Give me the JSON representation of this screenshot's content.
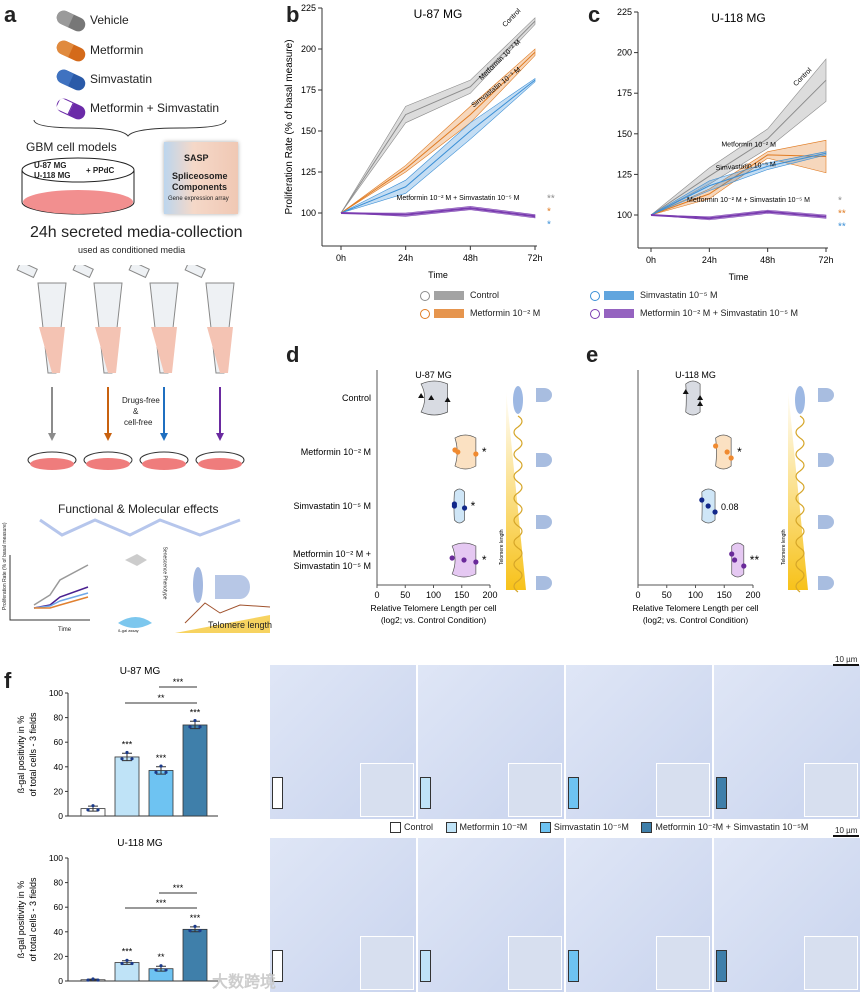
{
  "panels": {
    "a": "a",
    "b": "b",
    "c": "c",
    "d": "d",
    "e": "e",
    "f": "f"
  },
  "colors": {
    "control": "#8c8c8c",
    "metformin": "#e07b22",
    "simvastatin": "#3a8fd6",
    "combo": "#7a3cb0",
    "bar_control": "#ffffff",
    "bar_met": "#bfe3f7",
    "bar_sim": "#6ec3f2",
    "bar_combo": "#3f7faa"
  },
  "schematic": {
    "drugs": [
      "Vehicle",
      "Metformin",
      "Simvastatin",
      "Metformin + Simvastatin"
    ],
    "gbm_title": "GBM cell models",
    "dish_lines": [
      "U-87 MG",
      "U-118 MG"
    ],
    "dish_plus": "+ PPdC",
    "array_labels": [
      "SASP",
      "Spliceosome",
      "Components",
      "Gene expression array"
    ],
    "collection_title": "24h secreted media-collection",
    "collection_sub": "used as conditioned media",
    "arrow_note": [
      "Drugs-free",
      "&",
      "cell-free"
    ],
    "effects_title": "Functional & Molecular effects",
    "mini_chart_ylabel": "Proliferation Rate (% of basal measure)",
    "mini_chart_xlabel": "Time",
    "senescence_label": "Senescence Phenotype",
    "bgal_label": "ß-gal assay",
    "telomere_label": "Telomere length"
  },
  "chart_data": [
    {
      "id": "b",
      "type": "line",
      "title": "U-87 MG",
      "xlabel": "Time",
      "ylabel": "Proliferation Rate (% of basal measure)",
      "categories": [
        "0h",
        "24h",
        "48h",
        "72h"
      ],
      "ylim": [
        80,
        225
      ],
      "yticks": [
        100,
        125,
        150,
        175,
        200,
        225
      ],
      "series": [
        {
          "name": "Control",
          "key": "control",
          "values": [
            100,
            160,
            177,
            217
          ],
          "err": [
            0,
            5,
            4,
            2
          ]
        },
        {
          "name": "Metformin 10⁻² M",
          "key": "metformin",
          "values": [
            100,
            127,
            160,
            198
          ],
          "err": [
            0,
            2,
            5,
            2
          ]
        },
        {
          "name": "Simvastatin 10⁻⁵ M",
          "key": "simvastatin",
          "values": [
            100,
            116,
            150,
            181
          ],
          "err": [
            0,
            4,
            5,
            1
          ]
        },
        {
          "name": "Metformin 10⁻² M + Simvastatin 10⁻⁵ M",
          "key": "combo",
          "values": [
            100,
            99,
            103,
            98
          ],
          "err": [
            0,
            1,
            1,
            1
          ]
        }
      ],
      "significance": [
        {
          "text": "**",
          "key": "control"
        },
        {
          "text": "*",
          "key": "metformin"
        },
        {
          "text": "*",
          "key": "simvastatin"
        }
      ]
    },
    {
      "id": "c",
      "type": "line",
      "title": "U-118 MG",
      "xlabel": "Time",
      "ylabel": "",
      "categories": [
        "0h",
        "24h",
        "48h",
        "72h"
      ],
      "ylim": [
        80,
        225
      ],
      "yticks": [
        100,
        125,
        150,
        175,
        200,
        225
      ],
      "series": [
        {
          "name": "Control",
          "key": "control",
          "values": [
            100,
            124,
            147,
            183
          ],
          "err": [
            0,
            5,
            6,
            13
          ]
        },
        {
          "name": "Metformin 10⁻² M",
          "key": "metformin",
          "values": [
            100,
            113,
            137,
            136
          ],
          "err": [
            0,
            3,
            2,
            10
          ]
        },
        {
          "name": "Simvastatin 10⁻⁵ M",
          "key": "simvastatin",
          "values": [
            100,
            118,
            130,
            138
          ],
          "err": [
            0,
            3,
            2,
            1
          ]
        },
        {
          "name": "Metformin 10⁻² M + Simvastatin 10⁻⁵ M",
          "key": "combo",
          "values": [
            100,
            98,
            102,
            99
          ],
          "err": [
            0,
            1,
            1,
            1
          ]
        }
      ],
      "significance": [
        {
          "text": "*",
          "key": "control"
        },
        {
          "text": "**",
          "key": "metformin"
        },
        {
          "text": "**",
          "key": "simvastatin"
        }
      ]
    },
    {
      "id": "d",
      "type": "scatter",
      "title": "U-87 MG",
      "xlabel": "Relative Telomere Length per cell",
      "xlabel2": "(log2; vs. Control Condition)",
      "xlim": [
        0,
        200
      ],
      "xticks": [
        0,
        50,
        100,
        150,
        200
      ],
      "groups": [
        {
          "name": "Control",
          "key": "control",
          "points": [
            78,
            96,
            125
          ],
          "sig": ""
        },
        {
          "name": "Metformin 10⁻² M",
          "key": "metformin",
          "points": [
            138,
            143,
            175
          ],
          "sig": "*"
        },
        {
          "name": "Simvastatin 10⁻⁵ M",
          "key": "simvastatin",
          "points": [
            137,
            137,
            155
          ],
          "sig": "*"
        },
        {
          "name": "Metformin 10⁻² M + Simvastatin 10⁻⁵ M",
          "key": "combo",
          "points": [
            133,
            154,
            175
          ],
          "sig": "*"
        }
      ],
      "side_label": "Telomere length"
    },
    {
      "id": "e",
      "type": "scatter",
      "title": "U-118 MG",
      "xlabel": "Relative Telomere Length per cell",
      "xlabel2": "(log2; vs. Control Condition)",
      "xlim": [
        0,
        200
      ],
      "xticks": [
        0,
        50,
        100,
        150,
        200
      ],
      "groups": [
        {
          "name": "Control",
          "key": "control",
          "points": [
            83,
            108,
            108
          ],
          "sig": ""
        },
        {
          "name": "Metformin 10⁻² M",
          "key": "metformin",
          "points": [
            135,
            155,
            162
          ],
          "sig": "*"
        },
        {
          "name": "Simvastatin 10⁻⁵ M",
          "key": "simvastatin",
          "points": [
            111,
            122,
            134
          ],
          "sig": "0.08"
        },
        {
          "name": "Metformin 10⁻² M + Simvastatin 10⁻⁵ M",
          "key": "combo",
          "points": [
            163,
            168,
            184
          ],
          "sig": "**"
        }
      ],
      "side_label": "Telomere length"
    },
    {
      "id": "f1",
      "type": "bar",
      "title": "U-87 MG",
      "ylabel": "ß-gal positivity in % of total cells - 3 fields",
      "categories": [
        "Control",
        "Metformin 10⁻²M",
        "Simvastatin 10⁻⁵M",
        "Metformin 10⁻²M + Simvastatin 10⁻⁵M"
      ],
      "values": [
        6,
        48,
        37,
        74
      ],
      "err": [
        2,
        3,
        3,
        3
      ],
      "ylim": [
        0,
        100
      ],
      "yticks": [
        0,
        20,
        40,
        60,
        80,
        100
      ],
      "sig": [
        "",
        "***",
        "***",
        "***"
      ],
      "brackets": [
        {
          "from": 2,
          "to": 3,
          "text": "***"
        },
        {
          "from": 1,
          "to": 3,
          "text": "**"
        }
      ]
    },
    {
      "id": "f2",
      "type": "bar",
      "title": "U-118 MG",
      "ylabel": "ß-gal positivity in % of total cells - 3 fields",
      "categories": [
        "Control",
        "Metformin 10⁻²M",
        "Simvastatin 10⁻⁵M",
        "Metformin 10⁻²M + Simvastatin 10⁻⁵M"
      ],
      "values": [
        1,
        15,
        10,
        42
      ],
      "err": [
        0.5,
        1.5,
        2,
        2
      ],
      "ylim": [
        0,
        100
      ],
      "yticks": [
        0,
        20,
        40,
        60,
        80,
        100
      ],
      "sig": [
        "",
        "***",
        "**",
        "***"
      ],
      "brackets": [
        {
          "from": 2,
          "to": 3,
          "text": "***"
        },
        {
          "from": 1,
          "to": 3,
          "text": "***"
        }
      ]
    }
  ],
  "legend_bc": [
    {
      "label": "Control",
      "key": "control"
    },
    {
      "label": "Simvastatin 10⁻⁵ M",
      "key": "simvastatin"
    },
    {
      "label": "Metformin 10⁻² M",
      "key": "metformin"
    },
    {
      "label": "Metformin 10⁻² M + Simvastatin 10⁻⁵ M",
      "key": "combo"
    }
  ],
  "micrographs": {
    "scale_bar": "10 µm",
    "legend": [
      "Control",
      "Metformin 10⁻²M",
      "Simvastatin 10⁻⁵M",
      "Metformin 10⁻²M + Simvastatin 10⁻⁵M"
    ]
  },
  "watermark": "大数跨境"
}
